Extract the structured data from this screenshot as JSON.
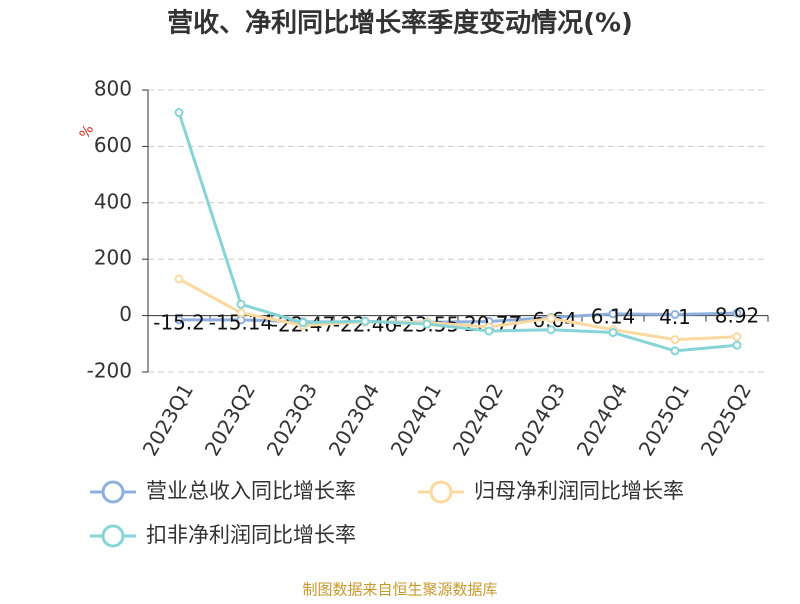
{
  "chart_data": {
    "type": "line",
    "title": "营收、净利同比增长率季度变动情况(%)",
    "y_label": "%",
    "source": "制图数据来自恒生聚源数据库",
    "categories": [
      "2023Q1",
      "2023Q2",
      "2023Q3",
      "2023Q4",
      "2024Q1",
      "2024Q2",
      "2024Q3",
      "2024Q4",
      "2025Q1",
      "2025Q2"
    ],
    "series": [
      {
        "name": "营业总收入同比增长率",
        "color": "#8fb0dd",
        "values": [
          -15.2,
          -15.14,
          -22.47,
          -22.46,
          -23.55,
          -20.77,
          -6.64,
          6.14,
          4.1,
          8.92
        ],
        "show_labels": true
      },
      {
        "name": "归母净利润同比增长率",
        "color": "#f9d9a0",
        "values": [
          130,
          10,
          -35,
          -22,
          -25,
          -40,
          -10,
          -50,
          -85,
          -75
        ]
      },
      {
        "name": "扣非净利润同比增长率",
        "color": "#86d4d6",
        "values": [
          720,
          40,
          -25,
          -20,
          -30,
          -55,
          -50,
          -60,
          -125,
          -105
        ]
      }
    ],
    "ylim": [
      -200,
      800
    ],
    "yticks": [
      -200,
      0,
      200,
      400,
      600,
      800
    ],
    "grid": true
  }
}
